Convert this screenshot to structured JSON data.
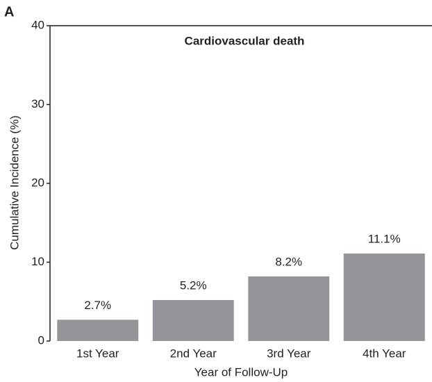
{
  "chart_data": {
    "type": "bar",
    "panel_label": "A",
    "title": "Cardiovascular death",
    "x_label": "Year of Follow-Up",
    "y_label": "Cumulative Incidence (%)",
    "categories": [
      "1st Year",
      "2nd Year",
      "3rd Year",
      "4th Year"
    ],
    "values": [
      2.7,
      5.2,
      8.2,
      11.1
    ],
    "value_labels": [
      "2.7%",
      "5.2%",
      "8.2%",
      "11.1%"
    ],
    "color": "#939598",
    "ylim": [
      0,
      40
    ],
    "yticks": [
      0,
      10,
      20,
      30,
      40
    ],
    "grid": false
  }
}
